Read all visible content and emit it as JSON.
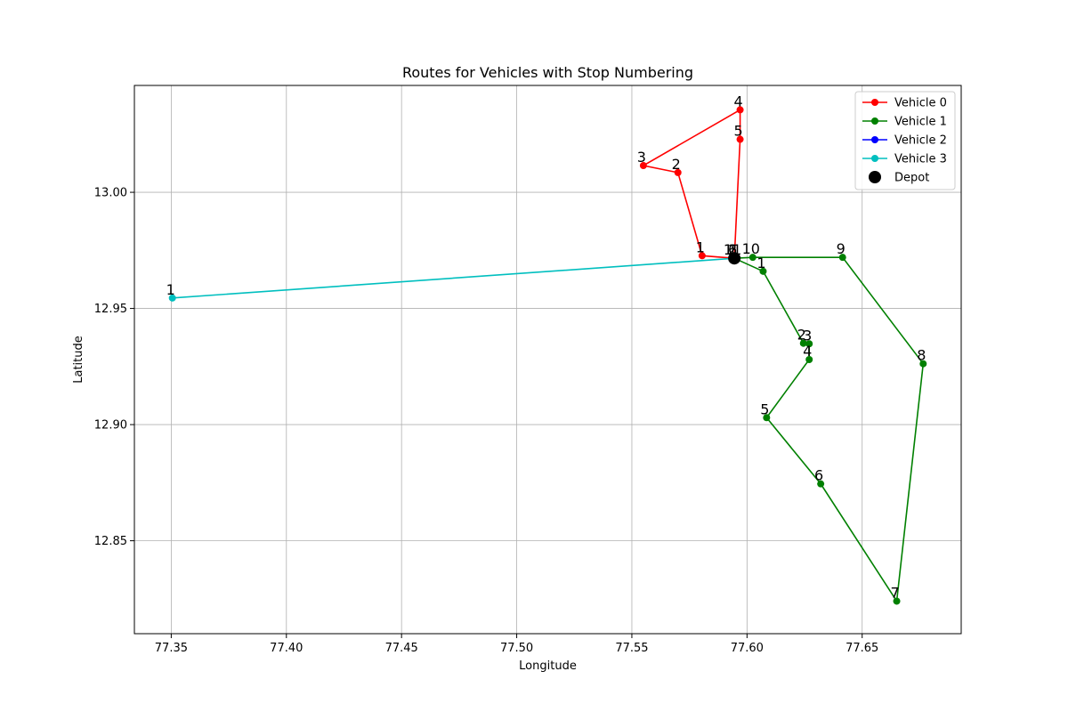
{
  "chart_data": {
    "type": "line",
    "title": "Routes for Vehicles with Stop Numbering",
    "xlabel": "Longitude",
    "ylabel": "Latitude",
    "xlim": [
      77.334,
      77.693
    ],
    "ylim": [
      12.81,
      13.046
    ],
    "xticks": [
      77.35,
      77.4,
      77.45,
      77.5,
      77.55,
      77.6,
      77.65
    ],
    "xtick_labels": [
      "77.35",
      "77.40",
      "77.45",
      "77.50",
      "77.55",
      "77.60",
      "77.65"
    ],
    "yticks": [
      12.85,
      12.9,
      12.95,
      13.0
    ],
    "ytick_labels": [
      "12.85",
      "12.90",
      "12.95",
      "13.00"
    ],
    "grid": true,
    "legend_position": "top-right",
    "depot": {
      "name": "Depot",
      "x": 77.5945,
      "y": 12.9716,
      "color": "#000000"
    },
    "series": [
      {
        "name": "Vehicle 0",
        "color": "#ff0000",
        "points": [
          {
            "x": 77.5945,
            "y": 12.9716,
            "label": ""
          },
          {
            "x": 77.5805,
            "y": 12.9727,
            "label": "1"
          },
          {
            "x": 77.57,
            "y": 13.0085,
            "label": "2"
          },
          {
            "x": 77.555,
            "y": 13.0115,
            "label": "3"
          },
          {
            "x": 77.597,
            "y": 13.0355,
            "label": "4"
          },
          {
            "x": 77.597,
            "y": 13.0228,
            "label": "5"
          },
          {
            "x": 77.5945,
            "y": 12.9716,
            "label": "6"
          }
        ]
      },
      {
        "name": "Vehicle 1",
        "color": "#008000",
        "points": [
          {
            "x": 77.5945,
            "y": 12.9716,
            "label": ""
          },
          {
            "x": 77.607,
            "y": 12.966,
            "label": "1"
          },
          {
            "x": 77.6245,
            "y": 12.935,
            "label": "2"
          },
          {
            "x": 77.627,
            "y": 12.9348,
            "label": "3"
          },
          {
            "x": 77.627,
            "y": 12.928,
            "label": "4"
          },
          {
            "x": 77.6085,
            "y": 12.903,
            "label": "5"
          },
          {
            "x": 77.632,
            "y": 12.8745,
            "label": "6"
          },
          {
            "x": 77.665,
            "y": 12.824,
            "label": "7"
          },
          {
            "x": 77.6765,
            "y": 12.9262,
            "label": "8"
          },
          {
            "x": 77.6415,
            "y": 12.972,
            "label": "9"
          },
          {
            "x": 77.6025,
            "y": 12.972,
            "label": "10"
          },
          {
            "x": 77.5945,
            "y": 12.9716,
            "label": "11"
          }
        ]
      },
      {
        "name": "Vehicle 2",
        "color": "#0000ff",
        "points": [
          {
            "x": 77.5945,
            "y": 12.9716,
            "label": ""
          },
          {
            "x": 77.5945,
            "y": 12.9716,
            "label": "1"
          }
        ]
      },
      {
        "name": "Vehicle 3",
        "color": "#00bfbf",
        "points": [
          {
            "x": 77.5945,
            "y": 12.9716,
            "label": ""
          },
          {
            "x": 77.3505,
            "y": 12.9545,
            "label": "1"
          },
          {
            "x": 77.5945,
            "y": 12.9716,
            "label": "2"
          }
        ]
      }
    ]
  }
}
